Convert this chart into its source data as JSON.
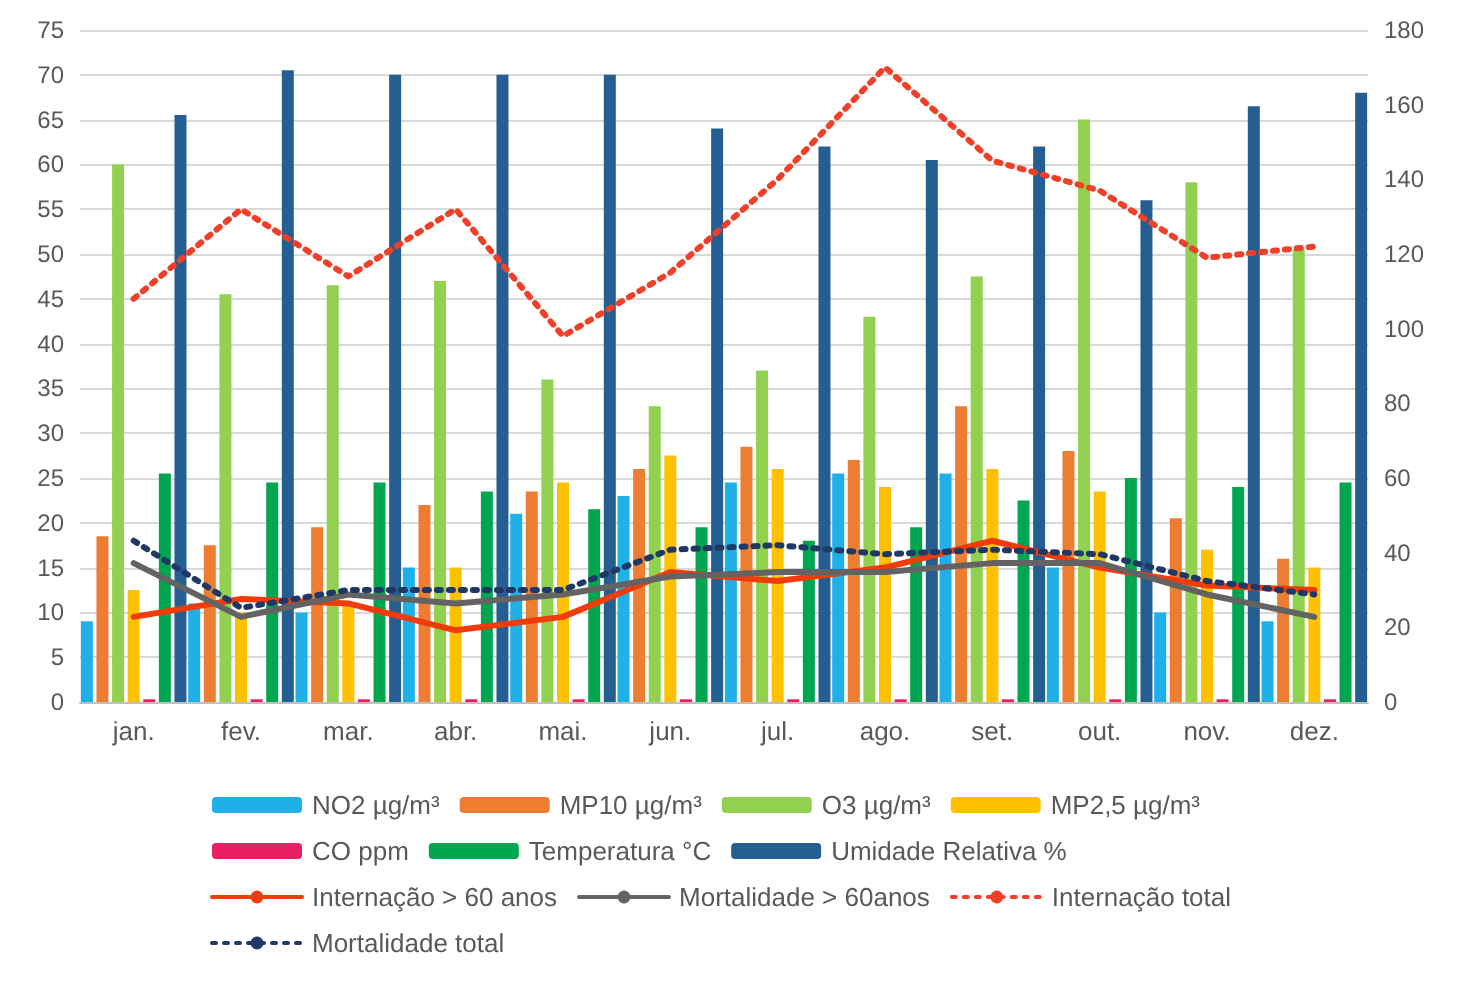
{
  "chart_data": {
    "type": "bar",
    "categories": [
      "jan.",
      "fev.",
      "mar.",
      "abr.",
      "mai.",
      "jun.",
      "jul.",
      "ago.",
      "set.",
      "out.",
      "nov.",
      "dez."
    ],
    "ylim": [
      0,
      75
    ],
    "yticks": [
      0,
      5,
      10,
      15,
      20,
      25,
      30,
      35,
      40,
      45,
      50,
      55,
      60,
      65,
      70,
      75
    ],
    "y2lim": [
      0,
      180
    ],
    "y2ticks": [
      0,
      20,
      40,
      60,
      80,
      100,
      120,
      140,
      160,
      180
    ],
    "grid": "y",
    "legend": "bottom",
    "series": [
      {
        "name": "NO2 µg/m³",
        "color": "#1fb0e8",
        "values": [
          9,
          11,
          10,
          15,
          21,
          23,
          24.5,
          25.5,
          25.5,
          15,
          10,
          9
        ]
      },
      {
        "name": "MP10 µg/m³",
        "color": "#ed7d31",
        "values": [
          18.5,
          17.5,
          19.5,
          22,
          23.5,
          26,
          28.5,
          27,
          33,
          28,
          20.5,
          16
        ]
      },
      {
        "name": "O3 µg/m³",
        "color": "#92d050",
        "values": [
          60,
          45.5,
          46.5,
          47,
          36,
          33,
          37,
          43,
          47.5,
          65,
          58,
          50.5
        ]
      },
      {
        "name": "MP2,5 µg/m³",
        "color": "#ffc000",
        "values": [
          12.5,
          10,
          11,
          15,
          24.5,
          27.5,
          26,
          24,
          26,
          23.5,
          17,
          15
        ]
      },
      {
        "name": "CO ppm",
        "color": "#e91e63",
        "values": [
          0.3,
          0.3,
          0.3,
          0.3,
          0.3,
          0.3,
          0.3,
          0.3,
          0.3,
          0.3,
          0.3,
          0.3
        ]
      },
      {
        "name": "Temperatura °C",
        "color": "#00a550",
        "values": [
          25.5,
          24.5,
          24.5,
          23.5,
          21.5,
          19.5,
          18,
          19.5,
          22.5,
          25,
          24,
          24.5
        ]
      },
      {
        "name": "Umidade Relativa %",
        "color": "#255e91",
        "values": [
          65.5,
          70.5,
          70,
          70,
          70,
          64,
          62,
          60.5,
          62,
          56,
          66.5,
          68
        ]
      },
      {
        "name": "Internação > 60 anos",
        "type": "line",
        "color": "#f03c0a",
        "line_style": "solid",
        "values": [
          9.5,
          11.5,
          11,
          8,
          9.5,
          14.5,
          13.5,
          15,
          18,
          15,
          13,
          12.5
        ]
      },
      {
        "name": "Mortalidade > 60anos",
        "type": "line",
        "color": "#636363",
        "line_style": "solid",
        "values": [
          15.5,
          9.5,
          12,
          11,
          12,
          14,
          14.5,
          14.5,
          15.5,
          15.5,
          12,
          9.5
        ]
      },
      {
        "name": "Internação total",
        "type": "line",
        "axis": "y2",
        "color": "#f0402a",
        "line_style": "dotted",
        "values": [
          108,
          132,
          114,
          132,
          98,
          115,
          140,
          170,
          145,
          137,
          119,
          122
        ]
      },
      {
        "name": "Mortalidade total",
        "type": "line",
        "color": "#1f3864",
        "line_style": "dotted",
        "values": [
          18,
          10.5,
          12.5,
          12.5,
          12.5,
          17,
          17.5,
          16.5,
          17,
          16.5,
          13.5,
          12
        ]
      }
    ]
  }
}
